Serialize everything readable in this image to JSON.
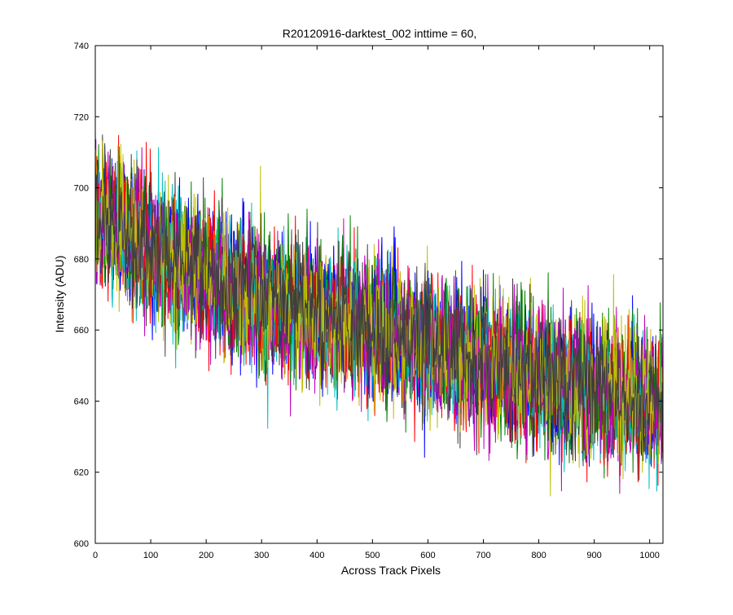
{
  "chart_data": {
    "type": "line",
    "title": "R20120916-darktest_002 inttime = 60,",
    "xlabel": "Across Track Pixels",
    "ylabel": "Intensity (ADU)",
    "xlim": [
      0,
      1024
    ],
    "ylim": [
      600,
      740
    ],
    "xticks": [
      0,
      100,
      200,
      300,
      400,
      500,
      600,
      700,
      800,
      900,
      1000
    ],
    "yticks": [
      600,
      620,
      640,
      660,
      680,
      700,
      720,
      740
    ],
    "grid": false,
    "legend": "none",
    "n_points_per_series": 1024,
    "trend": {
      "x": [
        0,
        100,
        200,
        300,
        400,
        500,
        600,
        700,
        800,
        900,
        1024
      ],
      "y": [
        693,
        683,
        675,
        669,
        664,
        660,
        655,
        651,
        647,
        643,
        640
      ]
    },
    "noise_amplitude": 9,
    "series_colors": [
      "#0000ff",
      "#008000",
      "#ff0000",
      "#00bfbf",
      "#bf00bf",
      "#bfbf00",
      "#3f3f3f"
    ],
    "seeds": [
      11,
      23,
      37,
      41,
      53,
      67,
      79,
      83,
      97,
      101,
      113,
      127,
      131,
      149
    ]
  }
}
